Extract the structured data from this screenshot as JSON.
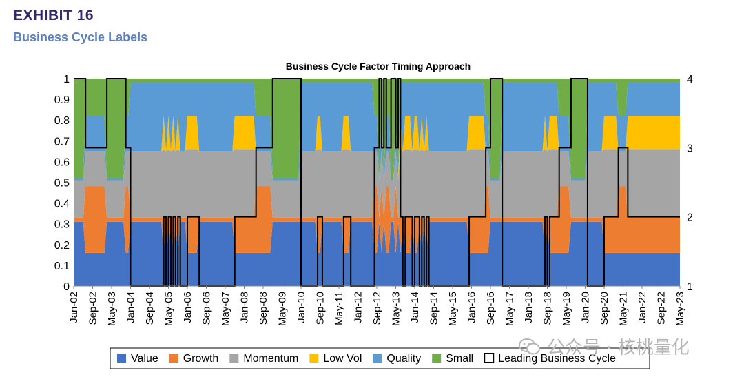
{
  "header": {
    "exhibit": "EXHIBIT 16",
    "subtitle": "Business Cycle Labels"
  },
  "watermark": {
    "text": "公众号 · 核桃量化",
    "logo": "wechat-logo"
  },
  "colors": {
    "value": "#4472c4",
    "growth": "#ed7d31",
    "momentum": "#a5a5a5",
    "lowvol": "#ffc000",
    "quality": "#5b9bd5",
    "small": "#70ad47",
    "line": "#000000"
  },
  "chart_data": {
    "type": "area",
    "title": "Business Cycle Factor Timing Approach",
    "ylim_left": [
      0,
      1
    ],
    "yticks_left": [
      "0",
      "0.1",
      "0.2",
      "0.3",
      "0.4",
      "0.5",
      "0.6",
      "0.7",
      "0.8",
      "0.9",
      "1"
    ],
    "ylim_right": [
      1,
      4
    ],
    "yticks_right": [
      "1",
      "2",
      "3",
      "4"
    ],
    "x_tick_labels": [
      "Jan-02",
      "Sep-02",
      "May-03",
      "Jan-04",
      "Sep-04",
      "May-05",
      "Jan-06",
      "Sep-06",
      "May-07",
      "Jan-08",
      "Sep-08",
      "May-09",
      "Jan-10",
      "Sep-10",
      "May-11",
      "Jan-12",
      "Sep-12",
      "May-13",
      "Jan-14",
      "Sep-14",
      "May-15",
      "Jan-16",
      "Sep-16",
      "May-17",
      "Jan-18",
      "Sep-18",
      "May-19",
      "Jan-20",
      "Sep-20",
      "May-21",
      "Jan-22",
      "Sep-22",
      "May-23"
    ],
    "n_months": 257,
    "regime_weights": {
      "1": {
        "value": 0.31,
        "growth": 0.02,
        "momentum": 0.32,
        "lowvol": 0.0,
        "quality": 0.33,
        "small": 0.02
      },
      "2": {
        "value": 0.16,
        "growth": 0.17,
        "momentum": 0.33,
        "lowvol": 0.16,
        "quality": 0.16,
        "small": 0.02
      },
      "3": {
        "value": 0.16,
        "growth": 0.32,
        "momentum": 0.17,
        "lowvol": 0.0,
        "quality": 0.17,
        "small": 0.18
      },
      "4": {
        "value": 0.31,
        "growth": 0.02,
        "momentum": 0.18,
        "lowvol": 0.0,
        "quality": 0.01,
        "small": 0.48
      }
    },
    "leading_business_cycle": [
      {
        "start": 0,
        "end": 5,
        "phase": 4
      },
      {
        "start": 5,
        "end": 14,
        "phase": 3
      },
      {
        "start": 14,
        "end": 22,
        "phase": 4
      },
      {
        "start": 22,
        "end": 24,
        "phase": 3
      },
      {
        "start": 24,
        "end": 38,
        "phase": 1
      },
      {
        "start": 38,
        "end": 39,
        "phase": 2
      },
      {
        "start": 39,
        "end": 40,
        "phase": 1
      },
      {
        "start": 40,
        "end": 41,
        "phase": 2
      },
      {
        "start": 41,
        "end": 42,
        "phase": 1
      },
      {
        "start": 42,
        "end": 43,
        "phase": 2
      },
      {
        "start": 43,
        "end": 44,
        "phase": 1
      },
      {
        "start": 44,
        "end": 45,
        "phase": 2
      },
      {
        "start": 45,
        "end": 48,
        "phase": 1
      },
      {
        "start": 48,
        "end": 53,
        "phase": 2
      },
      {
        "start": 53,
        "end": 68,
        "phase": 1
      },
      {
        "start": 68,
        "end": 77,
        "phase": 2
      },
      {
        "start": 77,
        "end": 84,
        "phase": 3
      },
      {
        "start": 84,
        "end": 96,
        "phase": 4
      },
      {
        "start": 96,
        "end": 103,
        "phase": 1
      },
      {
        "start": 103,
        "end": 105,
        "phase": 2
      },
      {
        "start": 105,
        "end": 114,
        "phase": 1
      },
      {
        "start": 114,
        "end": 117,
        "phase": 2
      },
      {
        "start": 117,
        "end": 127,
        "phase": 1
      },
      {
        "start": 127,
        "end": 129,
        "phase": 3
      },
      {
        "start": 129,
        "end": 130,
        "phase": 4
      },
      {
        "start": 130,
        "end": 131,
        "phase": 3
      },
      {
        "start": 131,
        "end": 132,
        "phase": 4
      },
      {
        "start": 132,
        "end": 134,
        "phase": 3
      },
      {
        "start": 134,
        "end": 136,
        "phase": 4
      },
      {
        "start": 136,
        "end": 137,
        "phase": 3
      },
      {
        "start": 137,
        "end": 138,
        "phase": 4
      },
      {
        "start": 138,
        "end": 139,
        "phase": 2
      },
      {
        "start": 139,
        "end": 140,
        "phase": 1
      },
      {
        "start": 140,
        "end": 143,
        "phase": 2
      },
      {
        "start": 143,
        "end": 144,
        "phase": 1
      },
      {
        "start": 144,
        "end": 146,
        "phase": 2
      },
      {
        "start": 146,
        "end": 147,
        "phase": 1
      },
      {
        "start": 147,
        "end": 148,
        "phase": 2
      },
      {
        "start": 148,
        "end": 149,
        "phase": 1
      },
      {
        "start": 149,
        "end": 150,
        "phase": 2
      },
      {
        "start": 150,
        "end": 167,
        "phase": 1
      },
      {
        "start": 167,
        "end": 174,
        "phase": 2
      },
      {
        "start": 174,
        "end": 176,
        "phase": 3
      },
      {
        "start": 176,
        "end": 181,
        "phase": 4
      },
      {
        "start": 181,
        "end": 199,
        "phase": 1
      },
      {
        "start": 199,
        "end": 200,
        "phase": 2
      },
      {
        "start": 200,
        "end": 201,
        "phase": 1
      },
      {
        "start": 201,
        "end": 205,
        "phase": 2
      },
      {
        "start": 205,
        "end": 210,
        "phase": 3
      },
      {
        "start": 210,
        "end": 217,
        "phase": 4
      },
      {
        "start": 217,
        "end": 224,
        "phase": 1
      },
      {
        "start": 224,
        "end": 230,
        "phase": 2
      },
      {
        "start": 230,
        "end": 234,
        "phase": 3
      },
      {
        "start": 234,
        "end": 257,
        "phase": 2
      }
    ],
    "legend": [
      {
        "key": "value",
        "label": "Value"
      },
      {
        "key": "growth",
        "label": "Growth"
      },
      {
        "key": "momentum",
        "label": "Momentum"
      },
      {
        "key": "lowvol",
        "label": "Low Vol"
      },
      {
        "key": "quality",
        "label": "Quality"
      },
      {
        "key": "small",
        "label": "Small"
      },
      {
        "key": "line",
        "label": "Leading Business Cycle"
      }
    ]
  }
}
